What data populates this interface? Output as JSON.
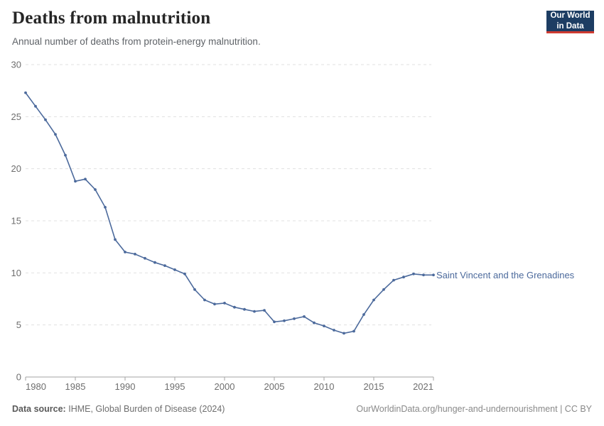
{
  "header": {
    "title": "Deaths from malnutrition",
    "subtitle": "Annual number of deaths from protein-energy malnutrition.",
    "logo_line1": "Our World",
    "logo_line2": "in Data"
  },
  "chart_data": {
    "type": "line",
    "title": "Deaths from malnutrition",
    "subtitle": "Annual number of deaths from protein-energy malnutrition.",
    "xlabel": "",
    "ylabel": "",
    "xlim": [
      1980,
      2021
    ],
    "ylim": [
      0,
      30
    ],
    "x_ticks": [
      1980,
      1985,
      1990,
      1995,
      2000,
      2005,
      2010,
      2015,
      2021
    ],
    "y_ticks": [
      0,
      5,
      10,
      15,
      20,
      25,
      30
    ],
    "grid": "horizontal-dashed",
    "legend_position": "end-of-line-label",
    "series": [
      {
        "name": "Saint Vincent and the Grenadines",
        "color": "#4c6a9c",
        "x": [
          1980,
          1981,
          1982,
          1983,
          1984,
          1985,
          1986,
          1987,
          1988,
          1989,
          1990,
          1991,
          1992,
          1993,
          1994,
          1995,
          1996,
          1997,
          1998,
          1999,
          2000,
          2001,
          2002,
          2003,
          2004,
          2005,
          2006,
          2007,
          2008,
          2009,
          2010,
          2011,
          2012,
          2013,
          2014,
          2015,
          2016,
          2017,
          2018,
          2019,
          2020,
          2021
        ],
        "values": [
          27.3,
          26.0,
          24.7,
          23.3,
          21.3,
          18.8,
          19.0,
          18.0,
          16.3,
          13.2,
          12.0,
          11.8,
          11.4,
          11.0,
          10.7,
          10.3,
          9.9,
          8.4,
          7.4,
          7.0,
          7.1,
          6.7,
          6.5,
          6.3,
          6.4,
          5.3,
          5.4,
          5.6,
          5.8,
          5.2,
          4.9,
          4.5,
          4.2,
          4.4,
          6.0,
          7.4,
          8.4,
          9.3,
          9.6,
          9.9,
          9.8,
          9.8
        ]
      }
    ],
    "colors": {
      "line": "#4c6a9c",
      "grid": "#e0e0e0",
      "axis": "#a3a3a3",
      "tick_text": "#6e6e6e"
    }
  },
  "footer": {
    "source_label": "Data source:",
    "source_value": "IHME, Global Burden of Disease (2024)",
    "attribution": "OurWorldinData.org/hunger-and-undernourishment | CC BY"
  }
}
